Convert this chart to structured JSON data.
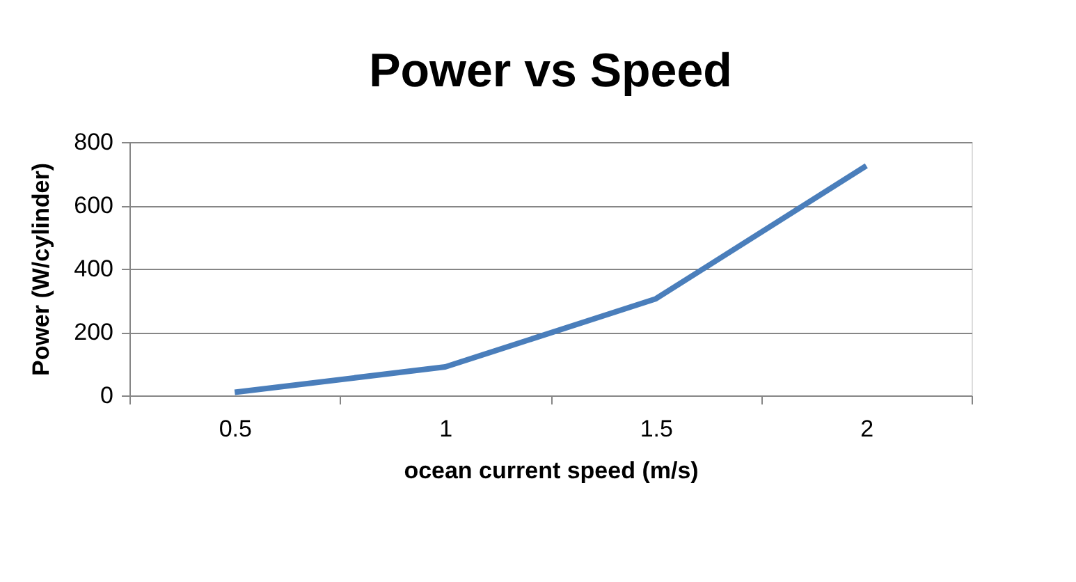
{
  "chart_data": {
    "type": "line",
    "title": "Power vs Speed",
    "xlabel": "ocean current speed (m/s)",
    "ylabel": "Power (W/cylinder)",
    "categories": [
      "0.5",
      "1",
      "1.5",
      "2"
    ],
    "series": [
      {
        "color": "#4a7ebb",
        "values": [
          10,
          90,
          305,
          725
        ]
      }
    ],
    "ylim": [
      0,
      800
    ],
    "yticks": [
      0,
      200,
      400,
      600,
      800
    ],
    "grid": "y",
    "marker": "none",
    "line_style": "solid"
  }
}
